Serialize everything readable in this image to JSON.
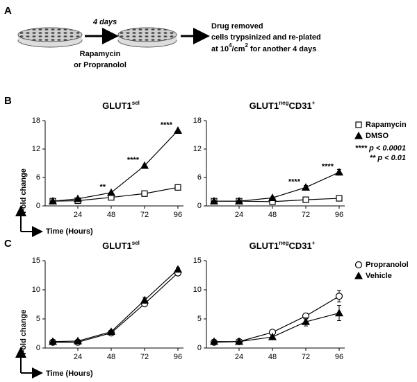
{
  "panel_labels": [
    "A",
    "B",
    "C"
  ],
  "schematic": {
    "duration": "4 days",
    "treatment": [
      "Rapamycin",
      "or Propranolol"
    ],
    "outcome": [
      "Drug removed",
      "cells trypsinized and re-plated"
    ],
    "outcome_last": [
      "at 10",
      "4",
      "/cm",
      "2",
      " for another 4 days"
    ]
  },
  "chart_data": [
    {
      "type": "line",
      "title": [
        "GLUT1",
        "sel"
      ],
      "y_label": "Fold change",
      "x_label": "Time (Hours)",
      "x": [
        6,
        24,
        48,
        72,
        96
      ],
      "xlim": [
        0,
        100
      ],
      "xticks": [
        24,
        48,
        72,
        96
      ],
      "ylim": [
        0,
        18
      ],
      "yticks": [
        0,
        6,
        12,
        18
      ],
      "annotations": [
        null,
        null,
        "**",
        "****",
        "****"
      ],
      "series": [
        {
          "marker": "square",
          "filled": false,
          "color": "#000000",
          "values": [
            1,
            1.1,
            1.8,
            2.6,
            3.9
          ]
        },
        {
          "marker": "triangle",
          "filled": true,
          "color": "#000000",
          "values": [
            1,
            1.5,
            2.8,
            8.5,
            15.9
          ]
        }
      ]
    },
    {
      "type": "line",
      "title": [
        "GLUT1",
        "neg",
        "CD31",
        "+"
      ],
      "x": [
        6,
        24,
        48,
        72,
        96
      ],
      "xlim": [
        0,
        100
      ],
      "xticks": [
        24,
        48,
        72,
        96
      ],
      "ylim": [
        0,
        18
      ],
      "yticks": [
        0,
        6,
        12,
        18
      ],
      "annotations": [
        null,
        null,
        null,
        "****",
        "****"
      ],
      "notes": [
        "**** p < 0.0001",
        "** p < 0.01"
      ],
      "legend": "right",
      "series": [
        {
          "name": "Rapamycin",
          "marker": "square",
          "filled": false,
          "color": "#000000",
          "values": [
            1,
            1,
            0.9,
            1.3,
            1.6
          ]
        },
        {
          "name": "DMSO",
          "marker": "triangle",
          "filled": true,
          "color": "#000000",
          "values": [
            1,
            1,
            1.7,
            3.9,
            7.1
          ],
          "errors": [
            0.1,
            0.1,
            0.2,
            0.4,
            0.6
          ]
        }
      ]
    },
    {
      "type": "line",
      "title": [
        "GLUT1",
        "sel"
      ],
      "y_label": "Fold change",
      "x_label": "Time (Hours)",
      "x": [
        6,
        24,
        48,
        72,
        96
      ],
      "xlim": [
        0,
        100
      ],
      "xticks": [
        24,
        48,
        72,
        96
      ],
      "ylim": [
        0,
        15
      ],
      "yticks": [
        0,
        5,
        10,
        15
      ],
      "series": [
        {
          "marker": "circle",
          "filled": false,
          "color": "#000000",
          "values": [
            1,
            1,
            2.6,
            7.6,
            12.9
          ],
          "errors": [
            0.1,
            0.1,
            0.2,
            0.4,
            0.3
          ]
        },
        {
          "marker": "triangle",
          "filled": true,
          "color": "#000000",
          "values": [
            1.1,
            1.2,
            2.8,
            8.2,
            13.5
          ],
          "errors": [
            0.1,
            0.1,
            0.2,
            0.5,
            0.3
          ]
        }
      ]
    },
    {
      "type": "line",
      "title": [
        "GLUT1",
        "neg",
        "CD31",
        "+"
      ],
      "x": [
        6,
        24,
        48,
        72,
        96
      ],
      "xlim": [
        0,
        100
      ],
      "xticks": [
        24,
        48,
        72,
        96
      ],
      "ylim": [
        0,
        15
      ],
      "yticks": [
        0,
        5,
        10,
        15
      ],
      "legend": "right",
      "series": [
        {
          "name": "Propranolol",
          "marker": "circle",
          "filled": false,
          "color": "#000000",
          "values": [
            1,
            1.1,
            2.7,
            5.5,
            8.9
          ],
          "errors": [
            0.1,
            0.1,
            0.2,
            0.5,
            1.0
          ]
        },
        {
          "name": "Vehicle",
          "marker": "triangle",
          "filled": true,
          "color": "#000000",
          "values": [
            1.1,
            1.1,
            1.9,
            4.5,
            6.0
          ],
          "errors": [
            0.1,
            0.1,
            0.2,
            0.7,
            1.3
          ]
        }
      ]
    }
  ]
}
